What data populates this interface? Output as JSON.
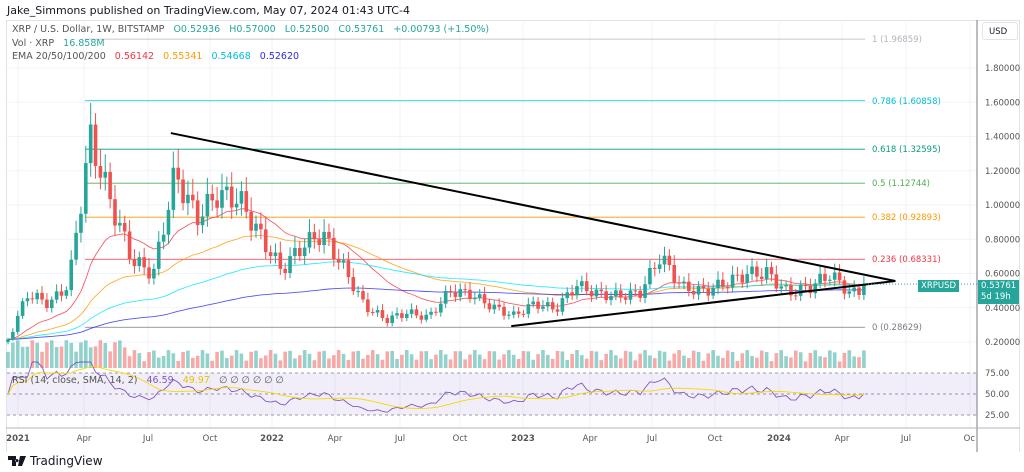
{
  "header": {
    "publisher_line": "Jake_Simmons published on TradingView.com, May 07, 2024 01:43 UTC-4"
  },
  "legend": {
    "symbol": "XRP / U.S. Dollar, 1W, BITSTAMP",
    "open": "O0.52936",
    "high": "H0.57000",
    "low": "L0.52500",
    "close": "C0.53761",
    "change": "+0.00793 (+1.50%)",
    "vol_label": "Vol · XRP",
    "vol_value": "16.858M",
    "ema_label": "EMA 20/50/100/200",
    "ema_values": [
      {
        "v": "0.56142",
        "color": "#f23645"
      },
      {
        "v": "0.55341",
        "color": "#ff9800"
      },
      {
        "v": "0.54668",
        "color": "#00e5ff"
      },
      {
        "v": "0.52620",
        "color": "#2a2ae8"
      }
    ]
  },
  "rsi": {
    "label": "RSI (14, close, SMA, 14, 2)",
    "value": "46.59",
    "sma": "49.97",
    "placeholders": "∅ ∅ ∅ ∅ ∅ ∅",
    "ticks": [
      "75.00",
      "50.00",
      "25.00"
    ]
  },
  "price_axis": {
    "currency": "USD",
    "ticks": [
      "1.80000",
      "1.60000",
      "1.40000",
      "1.20000",
      "1.00000",
      "0.80000",
      "0.60000",
      "0.40000",
      "0.20000"
    ],
    "last_symbol": "XRPUSD",
    "last_price": "0.53761",
    "countdown": "5d 19h"
  },
  "time_axis": [
    "2021",
    "Apr",
    "Jul",
    "Oct",
    "2022",
    "Apr",
    "Jul",
    "Oct",
    "2023",
    "Apr",
    "Jul",
    "Oct",
    "2024",
    "Apr",
    "Jul",
    "Oc"
  ],
  "brand": "TradingView",
  "colors": {
    "up": "#26a69a",
    "down": "#ef5350"
  },
  "chart_data": {
    "type": "candlestick",
    "symbol": "XRPUSD",
    "interval": "1W",
    "yrange": [
      0.2,
      1.96859
    ],
    "monthly_closes_approx": [
      [
        "2021-01",
        0.5
      ],
      [
        "2021-02",
        0.44
      ],
      [
        "2021-03",
        0.56
      ],
      [
        "2021-04",
        1.45
      ],
      [
        "2021-05",
        1.05
      ],
      [
        "2021-06",
        0.7
      ],
      [
        "2021-07",
        0.62
      ],
      [
        "2021-08",
        1.22
      ],
      [
        "2021-09",
        0.95
      ],
      [
        "2021-10",
        1.08
      ],
      [
        "2021-11",
        1.05
      ],
      [
        "2021-12",
        0.83
      ],
      [
        "2022-01",
        0.62
      ],
      [
        "2022-02",
        0.76
      ],
      [
        "2022-03",
        0.82
      ],
      [
        "2022-04",
        0.62
      ],
      [
        "2022-05",
        0.4
      ],
      [
        "2022-06",
        0.32
      ],
      [
        "2022-07",
        0.36
      ],
      [
        "2022-08",
        0.33
      ],
      [
        "2022-09",
        0.48
      ],
      [
        "2022-10",
        0.46
      ],
      [
        "2022-11",
        0.39
      ],
      [
        "2022-12",
        0.34
      ],
      [
        "2023-01",
        0.41
      ],
      [
        "2023-02",
        0.38
      ],
      [
        "2023-03",
        0.52
      ],
      [
        "2023-04",
        0.47
      ],
      [
        "2023-05",
        0.46
      ],
      [
        "2023-06",
        0.48
      ],
      [
        "2023-07",
        0.7
      ],
      [
        "2023-08",
        0.52
      ],
      [
        "2023-09",
        0.5
      ],
      [
        "2023-10",
        0.55
      ],
      [
        "2023-11",
        0.61
      ],
      [
        "2023-12",
        0.62
      ],
      [
        "2024-01",
        0.5
      ],
      [
        "2024-02",
        0.54
      ],
      [
        "2024-03",
        0.62
      ],
      [
        "2024-04",
        0.5
      ],
      [
        "2024-05",
        0.53761
      ]
    ],
    "fibonacci": [
      {
        "level": "1",
        "price": 1.96859,
        "color": "#b2b5be"
      },
      {
        "level": "0.786",
        "price": 1.60858,
        "color": "#00bcd4"
      },
      {
        "level": "0.618",
        "price": 1.32595,
        "color": "#089981"
      },
      {
        "level": "0.5",
        "price": 1.12744,
        "color": "#4caf50"
      },
      {
        "level": "0.382",
        "price": 0.92893,
        "color": "#ff9800"
      },
      {
        "level": "0.236",
        "price": 0.68331,
        "color": "#f23645"
      },
      {
        "level": "0",
        "price": 0.28629,
        "color": "#787b86"
      }
    ],
    "trendlines": [
      {
        "from": [
          "2021-08-09",
          1.42
        ],
        "to": [
          "2024-06-17",
          0.556
        ]
      },
      {
        "from": [
          "2022-12-12",
          0.293
        ],
        "to": [
          "2024-06-17",
          0.556
        ]
      }
    ]
  }
}
